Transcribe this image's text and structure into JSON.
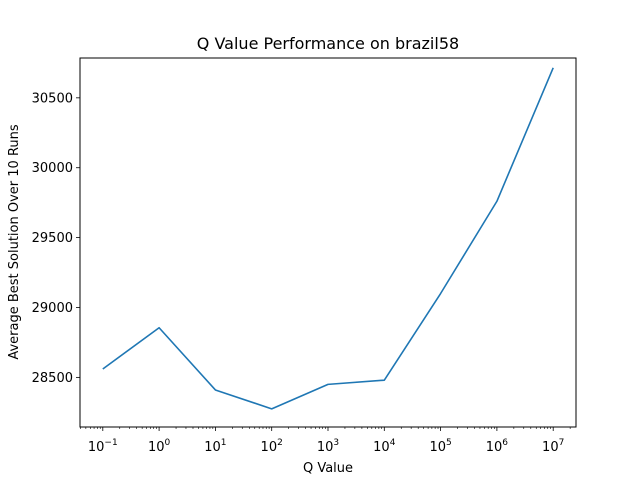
{
  "chart_data": {
    "type": "line",
    "title": "Q Value Performance on brazil58",
    "xlabel": "Q Value",
    "ylabel": "Average Best Solution Over 10 Runs",
    "x_scale": "log",
    "grid": false,
    "legend": "none",
    "x": [
      0.1,
      1,
      10,
      100,
      1000,
      10000,
      100000,
      1000000,
      10000000
    ],
    "x_tick_exponents": [
      "−1",
      "0",
      "1",
      "2",
      "3",
      "4",
      "5",
      "6",
      "7"
    ],
    "x_tick_base": "10",
    "y_ticks": [
      "28500",
      "29000",
      "29500",
      "30000",
      "30500"
    ],
    "y_tick_values": [
      28500,
      29000,
      29500,
      30000,
      30500
    ],
    "ylim": [
      28145,
      30785
    ],
    "series": [
      {
        "color": "#1f77b4",
        "values": [
          28560,
          28855,
          28410,
          28275,
          28450,
          28480,
          29100,
          29760,
          30715
        ]
      }
    ]
  }
}
